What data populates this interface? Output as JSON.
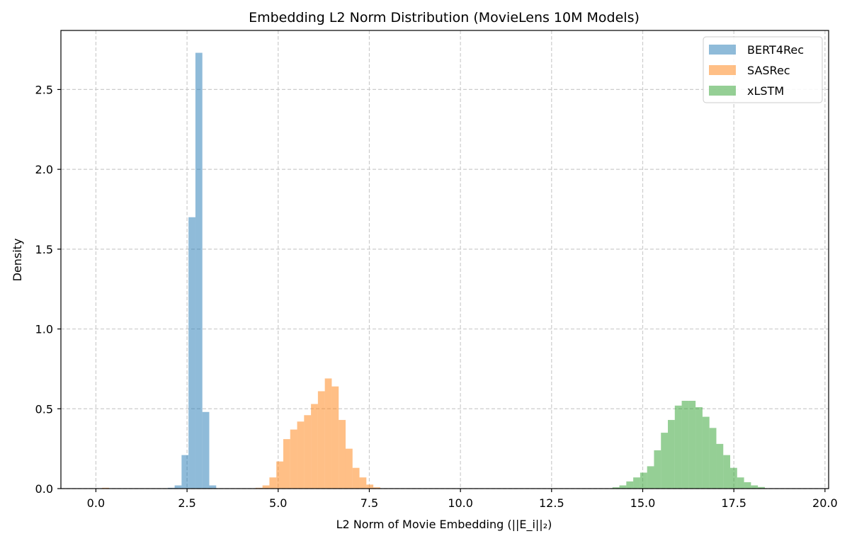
{
  "chart_data": {
    "type": "histogram",
    "title": "Embedding L2 Norm Distribution (MovieLens 10M Models)",
    "xlabel": "L2 Norm of Movie Embedding (||E_i||₂)",
    "ylabel": "Density",
    "xlim": [
      -0.96,
      20.1
    ],
    "ylim": [
      0,
      2.87
    ],
    "x_ticks": [
      "0.0",
      "2.5",
      "5.0",
      "7.5",
      "10.0",
      "12.5",
      "15.0",
      "17.5",
      "20.0"
    ],
    "y_ticks": [
      "0.0",
      "0.5",
      "1.0",
      "1.5",
      "2.0",
      "2.5"
    ],
    "grid": true,
    "legend_position": "top-right",
    "series": [
      {
        "name": "BERT4Rec",
        "color": "#1f77b4",
        "opacity": 0.5,
        "bin_width": 0.19,
        "bins": [
          {
            "x": 1.97,
            "y": 0.005
          },
          {
            "x": 2.16,
            "y": 0.02
          },
          {
            "x": 2.35,
            "y": 0.21
          },
          {
            "x": 2.54,
            "y": 1.7
          },
          {
            "x": 2.73,
            "y": 2.73
          },
          {
            "x": 2.92,
            "y": 0.48
          },
          {
            "x": 3.11,
            "y": 0.02
          }
        ]
      },
      {
        "name": "SASRec",
        "color": "#ff7f0e",
        "opacity": 0.5,
        "bin_width": 0.19,
        "bins": [
          {
            "x": 0.17,
            "y": 0.005
          },
          {
            "x": 4.38,
            "y": 0.005
          },
          {
            "x": 4.57,
            "y": 0.02
          },
          {
            "x": 4.76,
            "y": 0.07
          },
          {
            "x": 4.95,
            "y": 0.17
          },
          {
            "x": 5.14,
            "y": 0.31
          },
          {
            "x": 5.33,
            "y": 0.37
          },
          {
            "x": 5.52,
            "y": 0.42
          },
          {
            "x": 5.71,
            "y": 0.46
          },
          {
            "x": 5.9,
            "y": 0.53
          },
          {
            "x": 6.09,
            "y": 0.61
          },
          {
            "x": 6.28,
            "y": 0.69
          },
          {
            "x": 6.47,
            "y": 0.64
          },
          {
            "x": 6.66,
            "y": 0.43
          },
          {
            "x": 6.85,
            "y": 0.25
          },
          {
            "x": 7.04,
            "y": 0.13
          },
          {
            "x": 7.23,
            "y": 0.07
          },
          {
            "x": 7.42,
            "y": 0.025
          },
          {
            "x": 7.61,
            "y": 0.008
          }
        ]
      },
      {
        "name": "xLSTM",
        "color": "#2ca02c",
        "opacity": 0.5,
        "bin_width": 0.19,
        "bins": [
          {
            "x": 14.17,
            "y": 0.008
          },
          {
            "x": 14.36,
            "y": 0.02
          },
          {
            "x": 14.55,
            "y": 0.045
          },
          {
            "x": 14.74,
            "y": 0.07
          },
          {
            "x": 14.93,
            "y": 0.1
          },
          {
            "x": 15.12,
            "y": 0.14
          },
          {
            "x": 15.31,
            "y": 0.24
          },
          {
            "x": 15.5,
            "y": 0.35
          },
          {
            "x": 15.69,
            "y": 0.43
          },
          {
            "x": 15.88,
            "y": 0.52
          },
          {
            "x": 16.07,
            "y": 0.55
          },
          {
            "x": 16.26,
            "y": 0.55
          },
          {
            "x": 16.45,
            "y": 0.51
          },
          {
            "x": 16.64,
            "y": 0.45
          },
          {
            "x": 16.83,
            "y": 0.38
          },
          {
            "x": 17.02,
            "y": 0.28
          },
          {
            "x": 17.21,
            "y": 0.21
          },
          {
            "x": 17.4,
            "y": 0.13
          },
          {
            "x": 17.59,
            "y": 0.07
          },
          {
            "x": 17.78,
            "y": 0.04
          },
          {
            "x": 17.97,
            "y": 0.02
          },
          {
            "x": 18.16,
            "y": 0.01
          }
        ]
      }
    ]
  }
}
